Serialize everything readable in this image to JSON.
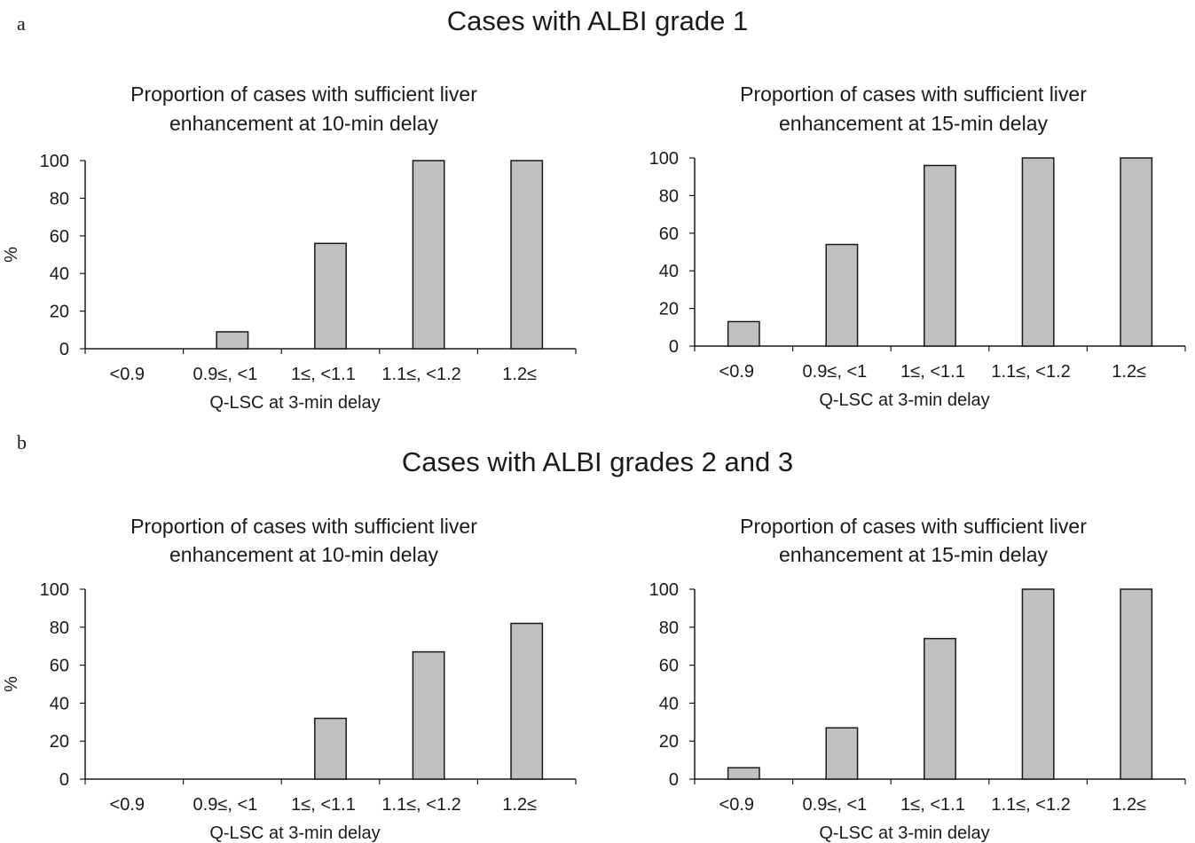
{
  "panels": [
    {
      "letter": "a",
      "title": "Cases with ALBI grade 1"
    },
    {
      "letter": "b",
      "title": "Cases with ALBI grades 2 and 3"
    }
  ],
  "colors": {
    "bar_fill": "#c0c0c0",
    "bar_stroke": "#1a1a1a",
    "axis": "#1a1a1a"
  },
  "chart_data": [
    {
      "type": "bar",
      "panel": "a",
      "title": [
        "Proportion of cases with sufficient liver",
        "enhancement at 10-min delay"
      ],
      "xlabel": "Q-LSC at 3-min delay",
      "ylabel": "%",
      "categories": [
        "<0.9",
        "0.9≤, <1",
        "1≤, <1.1",
        "1.1≤, <1.2",
        "1.2≤"
      ],
      "values": [
        0,
        9,
        56,
        100,
        100
      ],
      "ylim": [
        0,
        100
      ],
      "yticks": [
        0,
        20,
        40,
        60,
        80,
        100
      ],
      "grid": false
    },
    {
      "type": "bar",
      "panel": "a",
      "title": [
        "Proportion of cases with sufficient liver",
        "enhancement at 15-min delay"
      ],
      "xlabel": "Q-LSC at 3-min delay",
      "ylabel": "%",
      "categories": [
        "<0.9",
        "0.9≤, <1",
        "1≤, <1.1",
        "1.1≤, <1.2",
        "1.2≤"
      ],
      "values": [
        13,
        54,
        96,
        100,
        100
      ],
      "ylim": [
        0,
        100
      ],
      "yticks": [
        0,
        20,
        40,
        60,
        80,
        100
      ],
      "grid": false
    },
    {
      "type": "bar",
      "panel": "b",
      "title": [
        "Proportion of cases with sufficient liver",
        "enhancement at 10-min delay"
      ],
      "xlabel": "Q-LSC at 3-min delay",
      "ylabel": "%",
      "categories": [
        "<0.9",
        "0.9≤, <1",
        "1≤, <1.1",
        "1.1≤, <1.2",
        "1.2≤"
      ],
      "values": [
        0,
        0,
        32,
        67,
        82
      ],
      "ylim": [
        0,
        100
      ],
      "yticks": [
        0,
        20,
        40,
        60,
        80,
        100
      ],
      "grid": false
    },
    {
      "type": "bar",
      "panel": "b",
      "title": [
        "Proportion of cases with sufficient liver",
        "enhancement at 15-min delay"
      ],
      "xlabel": "Q-LSC at 3-min delay",
      "ylabel": "%",
      "categories": [
        "<0.9",
        "0.9≤, <1",
        "1≤, <1.1",
        "1.1≤, <1.2",
        "1.2≤"
      ],
      "values": [
        6,
        27,
        74,
        100,
        100
      ],
      "ylim": [
        0,
        100
      ],
      "yticks": [
        0,
        20,
        40,
        60,
        80,
        100
      ],
      "grid": false
    }
  ]
}
